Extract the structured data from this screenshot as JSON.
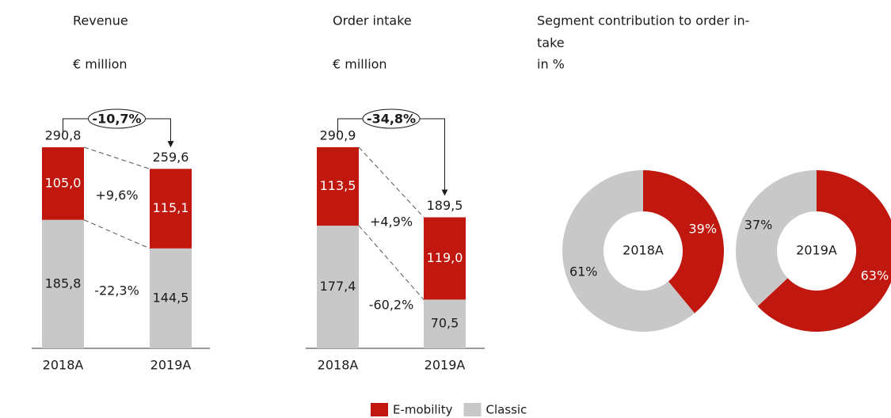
{
  "chart_data": [
    {
      "type": "stacked-bar",
      "title": "Revenue",
      "subtitle": "€ million",
      "categories": [
        "2018A",
        "2019A"
      ],
      "series": [
        {
          "name": "E-mobility",
          "color": "#c0180f",
          "values": [
            105.0,
            115.1
          ],
          "value_labels": [
            "105,0",
            "115,1"
          ],
          "change_label": "+9,6%"
        },
        {
          "name": "Classic",
          "color": "#c8c8c8",
          "values": [
            185.8,
            144.5
          ],
          "value_labels": [
            "185,8",
            "144,5"
          ],
          "change_label": "-22,3%"
        }
      ],
      "totals": [
        290.8,
        259.6
      ],
      "total_labels": [
        "290,8",
        "259,6"
      ],
      "total_change_label": "-10,7%",
      "ylim": [
        0,
        300
      ]
    },
    {
      "type": "stacked-bar",
      "title": "Order intake",
      "subtitle": "€ million",
      "categories": [
        "2018A",
        "2019A"
      ],
      "series": [
        {
          "name": "E-mobility",
          "color": "#c0180f",
          "values": [
            113.5,
            119.0
          ],
          "value_labels": [
            "113,5",
            "119,0"
          ],
          "change_label": "+4,9%"
        },
        {
          "name": "Classic",
          "color": "#c8c8c8",
          "values": [
            177.4,
            70.5
          ],
          "value_labels": [
            "177,4",
            "70,5"
          ],
          "change_label": "-60,2%"
        }
      ],
      "totals": [
        290.9,
        189.5
      ],
      "total_labels": [
        "290,9",
        "189,5"
      ],
      "total_change_label": "-34,8%",
      "ylim": [
        0,
        300
      ]
    },
    {
      "type": "donut",
      "title_lines": [
        "Segment contribution to order in-",
        "take"
      ],
      "subtitle": "in %",
      "colors": [
        "#c0180f",
        "#c8c8c8"
      ],
      "pies": [
        {
          "label": "2018A",
          "values": [
            39,
            61
          ],
          "value_labels": [
            "39%",
            "61%"
          ]
        },
        {
          "label": "2019A",
          "values": [
            63,
            37
          ],
          "value_labels": [
            "63%",
            "37%"
          ]
        }
      ]
    }
  ]
}
